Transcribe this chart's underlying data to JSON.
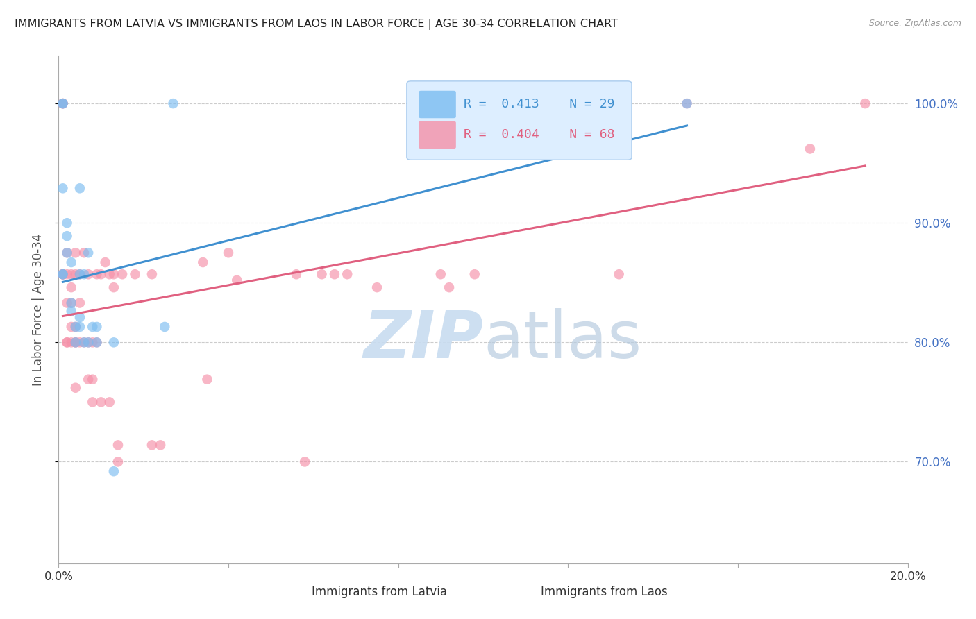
{
  "title": "IMMIGRANTS FROM LATVIA VS IMMIGRANTS FROM LAOS IN LABOR FORCE | AGE 30-34 CORRELATION CHART",
  "source_text": "Source: ZipAtlas.com",
  "ylabel": "In Labor Force | Age 30-34",
  "xlim": [
    0.0,
    0.2
  ],
  "ylim": [
    0.615,
    1.04
  ],
  "yticks": [
    0.7,
    0.8,
    0.9,
    1.0
  ],
  "ytick_labels": [
    "70.0%",
    "80.0%",
    "90.0%",
    "100.0%"
  ],
  "xtick_positions": [
    0.0,
    0.04,
    0.08,
    0.12,
    0.16,
    0.2
  ],
  "xtick_labels": [
    "0.0%",
    "",
    "",
    "",
    "",
    "20.0%"
  ],
  "latvia_R": 0.413,
  "latvia_N": 29,
  "laos_R": 0.404,
  "laos_N": 68,
  "latvia_color": "#7bbcf0",
  "laos_color": "#f590a8",
  "latvia_line_color": "#4090d0",
  "laos_line_color": "#e06080",
  "grid_color": "#cccccc",
  "title_color": "#222222",
  "right_tick_color": "#4472c4",
  "legend_bg_color": "#ddeeff",
  "legend_border_color": "#aaccee",
  "watermark_zip_color": "#c8dcf0",
  "watermark_atlas_color": "#b8cce0",
  "latvia_x": [
    0.001,
    0.001,
    0.001,
    0.001,
    0.001,
    0.002,
    0.002,
    0.002,
    0.003,
    0.003,
    0.003,
    0.004,
    0.004,
    0.005,
    0.005,
    0.005,
    0.005,
    0.006,
    0.006,
    0.007,
    0.007,
    0.008,
    0.009,
    0.009,
    0.013,
    0.013,
    0.025,
    0.027,
    0.148
  ],
  "latvia_y": [
    0.857,
    0.929,
    1.0,
    1.0,
    0.857,
    0.875,
    0.889,
    0.9,
    0.826,
    0.833,
    0.867,
    0.8,
    0.813,
    0.813,
    0.821,
    0.857,
    0.929,
    0.8,
    0.857,
    0.8,
    0.875,
    0.813,
    0.8,
    0.813,
    0.692,
    0.8,
    0.813,
    1.0,
    1.0
  ],
  "laos_x": [
    0.001,
    0.001,
    0.001,
    0.001,
    0.001,
    0.001,
    0.001,
    0.002,
    0.002,
    0.002,
    0.002,
    0.002,
    0.003,
    0.003,
    0.003,
    0.003,
    0.003,
    0.004,
    0.004,
    0.004,
    0.004,
    0.004,
    0.004,
    0.005,
    0.005,
    0.005,
    0.006,
    0.006,
    0.007,
    0.007,
    0.007,
    0.008,
    0.008,
    0.008,
    0.009,
    0.009,
    0.01,
    0.01,
    0.011,
    0.012,
    0.012,
    0.013,
    0.013,
    0.014,
    0.014,
    0.015,
    0.018,
    0.022,
    0.022,
    0.024,
    0.034,
    0.035,
    0.04,
    0.042,
    0.056,
    0.058,
    0.062,
    0.065,
    0.068,
    0.075,
    0.09,
    0.092,
    0.098,
    0.108,
    0.132,
    0.148,
    0.177,
    0.19
  ],
  "laos_y": [
    0.857,
    0.857,
    0.857,
    1.0,
    1.0,
    1.0,
    0.857,
    0.8,
    0.8,
    0.833,
    0.857,
    0.875,
    0.8,
    0.813,
    0.833,
    0.846,
    0.857,
    0.762,
    0.8,
    0.8,
    0.813,
    0.857,
    0.875,
    0.8,
    0.833,
    0.857,
    0.8,
    0.875,
    0.769,
    0.8,
    0.857,
    0.75,
    0.769,
    0.8,
    0.8,
    0.857,
    0.75,
    0.857,
    0.867,
    0.75,
    0.857,
    0.846,
    0.857,
    0.7,
    0.714,
    0.857,
    0.857,
    0.857,
    0.714,
    0.714,
    0.867,
    0.769,
    0.875,
    0.852,
    0.857,
    0.7,
    0.857,
    0.857,
    0.857,
    0.846,
    0.857,
    0.846,
    0.857,
    1.0,
    0.857,
    1.0,
    0.962,
    1.0
  ]
}
